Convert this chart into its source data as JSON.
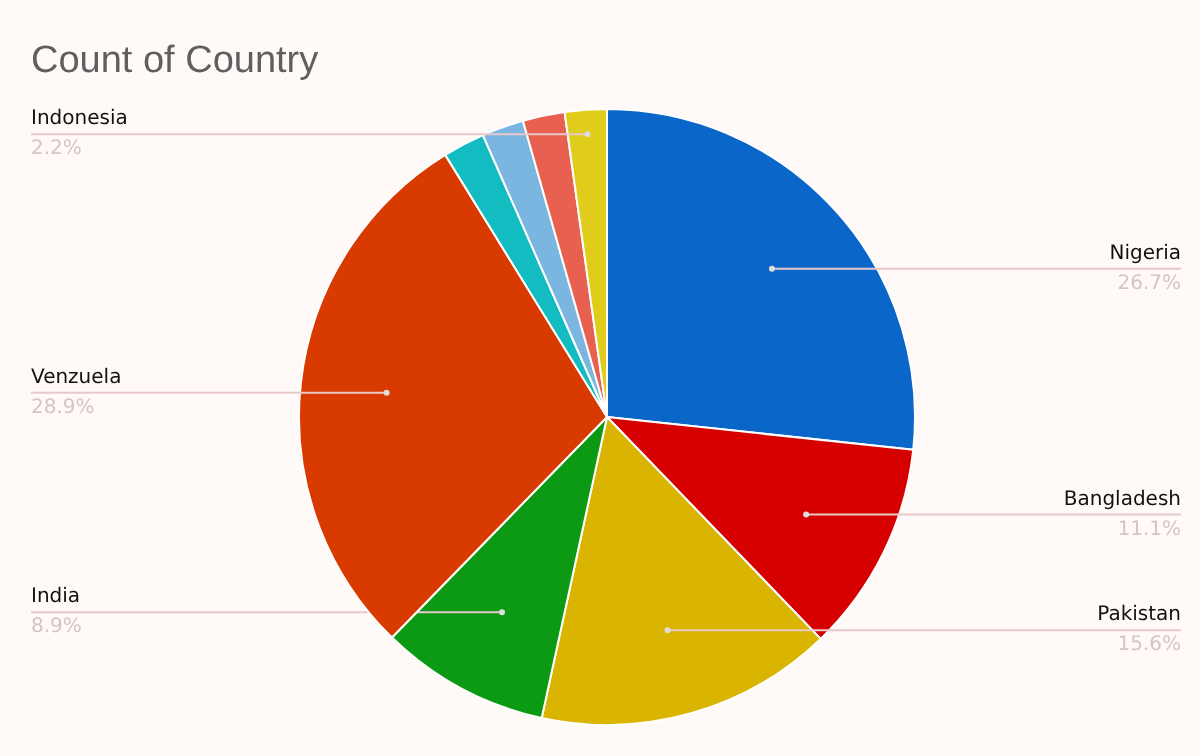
{
  "chart_data": {
    "type": "pie",
    "title": "Count of Country",
    "categories": [
      "Nigeria",
      "Bangladesh",
      "Pakistan",
      "India",
      "Venzuela",
      null,
      null,
      null,
      "Indonesia"
    ],
    "values": [
      26.7,
      11.1,
      15.6,
      8.9,
      28.9,
      2.2,
      2.2,
      2.2,
      2.2
    ],
    "colors": [
      "#0b66c9",
      "#d60000",
      "#d9b400",
      "#0c9a14",
      "#d83a00",
      "#13bcc0",
      "#7ab6e0",
      "#e8604f",
      "#e0cc1a"
    ],
    "value_labels": [
      "26.7%",
      "11.1%",
      "15.6%",
      "8.9%",
      "28.9%",
      null,
      null,
      null,
      "2.2%"
    ]
  }
}
